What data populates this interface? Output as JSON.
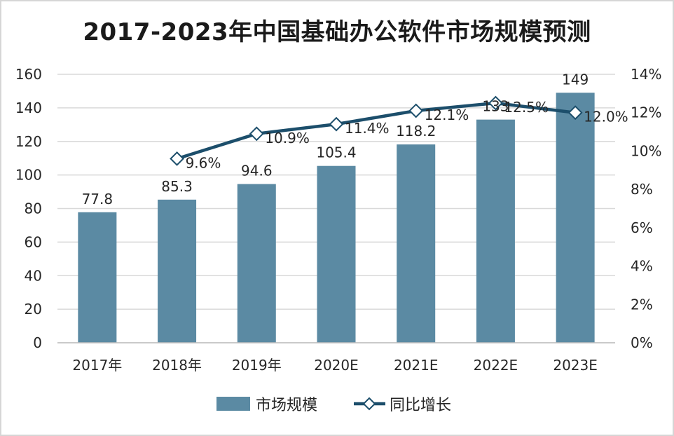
{
  "chart_data": {
    "type": "bar",
    "title": "2017-2023年中国基础办公软件市场规模预测",
    "categories": [
      "2017年",
      "2018年",
      "2019年",
      "2020E",
      "2021E",
      "2022E",
      "2023E"
    ],
    "series": [
      {
        "name": "市场规模",
        "type": "bar",
        "axis": "left",
        "values": [
          77.8,
          85.3,
          94.6,
          105.4,
          118.2,
          133,
          149
        ],
        "labels": [
          "77.8",
          "85.3",
          "94.6",
          "105.4",
          "118.2",
          "133",
          "149"
        ],
        "color": "#5b8aa3"
      },
      {
        "name": "同比增长",
        "type": "line",
        "axis": "right",
        "values": [
          null,
          9.6,
          10.9,
          11.4,
          12.1,
          12.5,
          12.0
        ],
        "labels": [
          "",
          "9.6%",
          "10.9%",
          "11.4%",
          "12.1%",
          "12.5%",
          "12.0%"
        ],
        "color": "#1c4e6b"
      }
    ],
    "y_left": {
      "min": 0,
      "max": 160,
      "ticks": [
        "0",
        "20",
        "40",
        "60",
        "80",
        "100",
        "120",
        "140",
        "160"
      ]
    },
    "y_right": {
      "min": 0,
      "max": 14,
      "ticks": [
        "0%",
        "2%",
        "4%",
        "6%",
        "8%",
        "10%",
        "12%",
        "14%"
      ]
    },
    "grid": true,
    "legend_position": "bottom"
  }
}
